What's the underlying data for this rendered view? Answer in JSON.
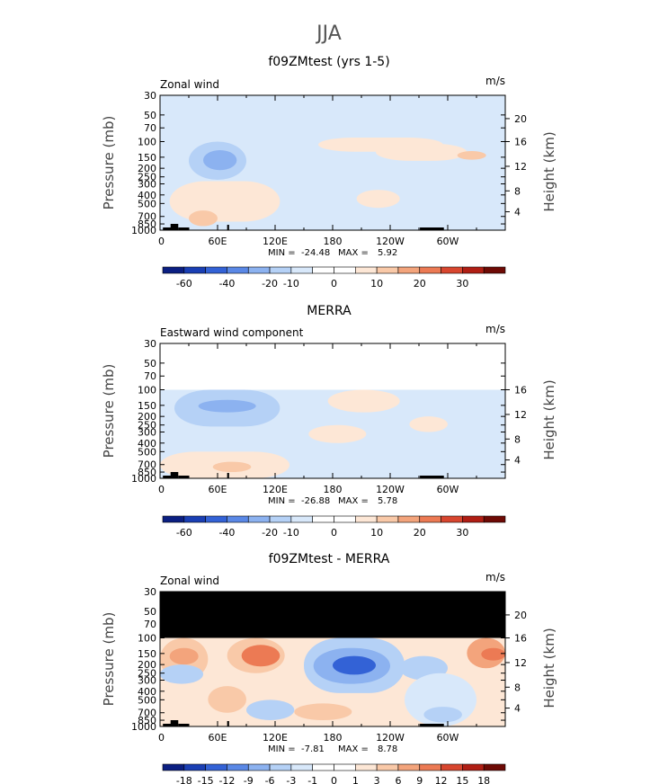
{
  "figure": {
    "title": "JJA"
  },
  "colors": {
    "positive": [
      "#fde7d6",
      "#f9c9a8",
      "#f3a47c",
      "#ec7a54",
      "#d8462f",
      "#b01e14",
      "#6e0a05"
    ],
    "negative": [
      "#d8e8fa",
      "#b5d1f6",
      "#8cb2f0",
      "#5a88e6",
      "#3362d6",
      "#1a3fb4",
      "#0b1f82"
    ],
    "masked": "#000000",
    "land": "#000000"
  },
  "chart_data": [
    {
      "type": "heatmap",
      "title": "f09ZMtest (yrs 1-5)",
      "subtitle_left": "Zonal wind",
      "units": "m/s",
      "ylabel": "Pressure (mb)",
      "ylabel_right": "Height (km)",
      "x_ticks": [
        "0",
        "60E",
        "120E",
        "180",
        "120W",
        "60W"
      ],
      "y_ticks": [
        "30",
        "50",
        "70",
        "100",
        "150",
        "200",
        "250",
        "300",
        "400",
        "500",
        "700",
        "850",
        "1000"
      ],
      "y2_ticks": [
        "20",
        "16",
        "12",
        "8",
        "4"
      ],
      "xlim": [
        0,
        360
      ],
      "ylim": [
        1000,
        30
      ],
      "y_scale": "log",
      "stats": {
        "min_label": "MIN =",
        "min": "-24.48",
        "max_label": "MAX =",
        "max": "5.92"
      },
      "colorbar_labels": [
        "-60",
        "-40",
        "-20",
        "-10",
        "0",
        "10",
        "20",
        "30"
      ],
      "colorbar_levels": 16,
      "features": [
        {
          "lon": [
            0,
            360
          ],
          "p": [
            30,
            1000
          ],
          "level": -1
        },
        {
          "lon": [
            165,
            295
          ],
          "p": [
            90,
            130
          ],
          "level": 1
        },
        {
          "lon": [
            225,
            320
          ],
          "p": [
            105,
            165
          ],
          "level": 1
        },
        {
          "lon": [
            10,
            125
          ],
          "p": [
            280,
            800
          ],
          "level": 1
        },
        {
          "lon": [
            205,
            250
          ],
          "p": [
            350,
            560
          ],
          "level": 1
        },
        {
          "lon": [
            30,
            90
          ],
          "p": [
            100,
            270
          ],
          "level": -2
        },
        {
          "lon": [
            45,
            80
          ],
          "p": [
            125,
            210
          ],
          "level": -3
        },
        {
          "lon": [
            310,
            340
          ],
          "p": [
            128,
            160
          ],
          "level": 2
        },
        {
          "lon": [
            30,
            60
          ],
          "p": [
            600,
            900
          ],
          "level": 2
        }
      ]
    },
    {
      "type": "heatmap",
      "title": "MERRA",
      "subtitle_left": "Eastward wind component",
      "units": "m/s",
      "ylabel": "Pressure (mb)",
      "ylabel_right": "Height (km)",
      "x_ticks": [
        "0",
        "60E",
        "120E",
        "180",
        "120W",
        "60W"
      ],
      "y_ticks": [
        "30",
        "50",
        "70",
        "100",
        "150",
        "200",
        "250",
        "300",
        "400",
        "500",
        "700",
        "850",
        "1000"
      ],
      "y2_ticks": [
        "16",
        "12",
        "8",
        "4"
      ],
      "xlim": [
        0,
        360
      ],
      "ylim": [
        1000,
        30
      ],
      "y_scale": "log",
      "data_top_p": 100,
      "stats": {
        "min_label": "MIN =",
        "min": "-26.88",
        "max_label": "MAX =",
        "max": "5.78"
      },
      "colorbar_labels": [
        "-60",
        "-40",
        "-20",
        "-10",
        "0",
        "10",
        "20",
        "30"
      ],
      "colorbar_levels": 16,
      "features": [
        {
          "lon": [
            0,
            360
          ],
          "p": [
            100,
            1000
          ],
          "level": -1
        },
        {
          "lon": [
            15,
            125
          ],
          "p": [
            100,
            260
          ],
          "level": -2
        },
        {
          "lon": [
            40,
            100
          ],
          "p": [
            130,
            180
          ],
          "level": -3
        },
        {
          "lon": [
            175,
            250
          ],
          "p": [
            100,
            180
          ],
          "level": 1
        },
        {
          "lon": [
            260,
            300
          ],
          "p": [
            200,
            300
          ],
          "level": 1
        },
        {
          "lon": [
            0,
            135
          ],
          "p": [
            500,
            1000
          ],
          "level": 1
        },
        {
          "lon": [
            155,
            215
          ],
          "p": [
            250,
            400
          ],
          "level": 1
        },
        {
          "lon": [
            55,
            95
          ],
          "p": [
            650,
            850
          ],
          "level": 2
        }
      ]
    },
    {
      "type": "heatmap",
      "title": "f09ZMtest - MERRA",
      "subtitle_left": "Zonal wind",
      "units": "m/s",
      "ylabel": "Pressure (mb)",
      "ylabel_right": "Height (km)",
      "x_ticks": [
        "0",
        "60E",
        "120E",
        "180",
        "120W",
        "60W"
      ],
      "y_ticks": [
        "30",
        "50",
        "70",
        "100",
        "150",
        "200",
        "250",
        "300",
        "400",
        "500",
        "700",
        "850",
        "1000"
      ],
      "y2_ticks": [
        "20",
        "16",
        "12",
        "8",
        "4"
      ],
      "xlim": [
        0,
        360
      ],
      "ylim": [
        1000,
        30
      ],
      "y_scale": "log",
      "masked_above_p": 100,
      "stats": {
        "min_label": "MIN =",
        "min": "-7.81",
        "max_label": "MAX =",
        "max": "8.78"
      },
      "colorbar_labels": [
        "-18",
        "-15",
        "-12",
        "-9",
        "-6",
        "-3",
        "-1",
        "0",
        "1",
        "3",
        "6",
        "9",
        "12",
        "15",
        "18"
      ],
      "colorbar_levels": 16,
      "features": [
        {
          "lon": [
            0,
            360
          ],
          "p": [
            100,
            1000
          ],
          "level": 1
        },
        {
          "lon": [
            0,
            50
          ],
          "p": [
            100,
            300
          ],
          "level": 2
        },
        {
          "lon": [
            10,
            40
          ],
          "p": [
            130,
            200
          ],
          "level": 3
        },
        {
          "lon": [
            70,
            130
          ],
          "p": [
            100,
            250
          ],
          "level": 2
        },
        {
          "lon": [
            85,
            125
          ],
          "p": [
            120,
            210
          ],
          "level": 4
        },
        {
          "lon": [
            150,
            255
          ],
          "p": [
            100,
            420
          ],
          "level": -2
        },
        {
          "lon": [
            160,
            240
          ],
          "p": [
            130,
            330
          ],
          "level": -3
        },
        {
          "lon": [
            180,
            225
          ],
          "p": [
            160,
            260
          ],
          "level": -5
        },
        {
          "lon": [
            0,
            45
          ],
          "p": [
            200,
            330
          ],
          "level": -2
        },
        {
          "lon": [
            250,
            300
          ],
          "p": [
            160,
            300
          ],
          "level": -2
        },
        {
          "lon": [
            320,
            360
          ],
          "p": [
            100,
            220
          ],
          "level": 3
        },
        {
          "lon": [
            335,
            360
          ],
          "p": [
            130,
            180
          ],
          "level": 4
        },
        {
          "lon": [
            255,
            330
          ],
          "p": [
            250,
            1000
          ],
          "level": -1
        },
        {
          "lon": [
            275,
            315
          ],
          "p": [
            600,
            900
          ],
          "level": -2
        },
        {
          "lon": [
            90,
            140
          ],
          "p": [
            500,
            850
          ],
          "level": -2
        },
        {
          "lon": [
            50,
            90
          ],
          "p": [
            350,
            700
          ],
          "level": 2
        },
        {
          "lon": [
            140,
            200
          ],
          "p": [
            550,
            850
          ],
          "level": 2
        }
      ]
    }
  ]
}
